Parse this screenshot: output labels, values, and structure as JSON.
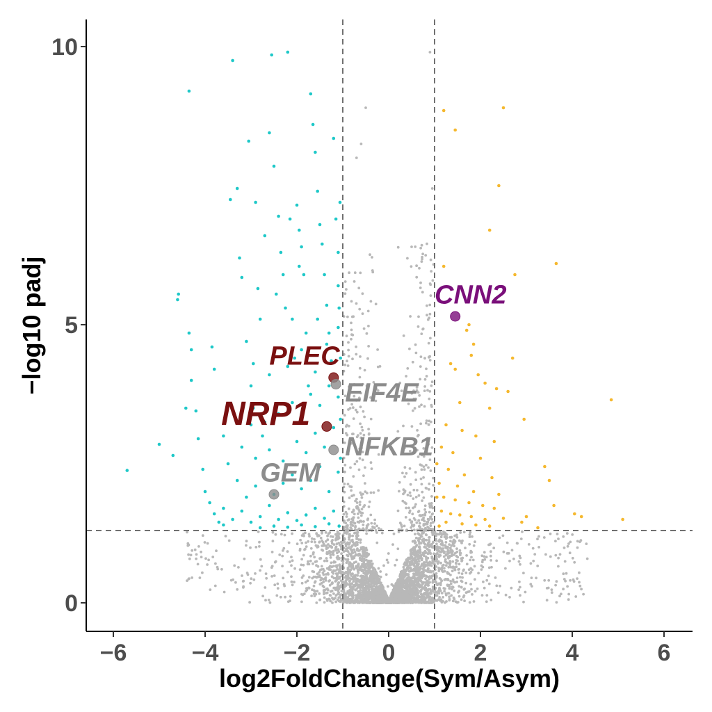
{
  "chart_data": {
    "type": "scatter",
    "title": "",
    "xlabel": "log2FoldChange(Sym/Asym)",
    "ylabel": "−log10 padj",
    "xlim": [
      -6.6,
      6.6
    ],
    "ylim": [
      -0.5,
      10.5
    ],
    "x_ticks": [
      -6,
      -4,
      -2,
      0,
      2,
      4,
      6
    ],
    "x_tick_labels": [
      "−6",
      "−4",
      "−2",
      "0",
      "2",
      "4",
      "6"
    ],
    "y_ticks": [
      0,
      5,
      10
    ],
    "y_tick_labels": [
      "0",
      "5",
      "10"
    ],
    "grid": false,
    "legend": "none",
    "thresholds": {
      "log2fc": [
        -1,
        1
      ],
      "neg_log10_padj": 1.3
    },
    "colors": {
      "down": "#1ec8c8",
      "up": "#f5b82e",
      "not_significant": "#b8b8b8",
      "highlight_dark_red": "#7a1010",
      "highlight_purple": "#7a0f7a",
      "highlight_gray": "#8c8c8c",
      "threshold_line": "#707070"
    },
    "series": [
      {
        "key": "down",
        "color": "#1ec8c8",
        "points": [
          [
            -5.7,
            2.38
          ],
          [
            -5.0,
            2.85
          ],
          [
            -4.7,
            2.65
          ],
          [
            -4.6,
            5.45
          ],
          [
            -4.58,
            5.55
          ],
          [
            -4.42,
            3.5
          ],
          [
            -4.35,
            9.2
          ],
          [
            -4.35,
            4.85
          ],
          [
            -4.3,
            4.55
          ],
          [
            -4.3,
            4.0
          ],
          [
            -4.2,
            3.45
          ],
          [
            -4.15,
            2.95
          ],
          [
            -4.05,
            2.4
          ],
          [
            -4.0,
            2.0
          ],
          [
            -3.9,
            1.8
          ],
          [
            -3.85,
            4.6
          ],
          [
            -3.8,
            4.2
          ],
          [
            -3.7,
            1.45
          ],
          [
            -3.6,
            1.4
          ],
          [
            -3.45,
            7.25
          ],
          [
            -3.4,
            9.75
          ],
          [
            -3.3,
            7.45
          ],
          [
            -3.2,
            5.85
          ],
          [
            -3.1,
            4.7
          ],
          [
            -3.05,
            8.3
          ],
          [
            -3.0,
            3.9
          ],
          [
            -2.95,
            3.5
          ],
          [
            -2.9,
            7.2
          ],
          [
            -2.85,
            5.65
          ],
          [
            -2.8,
            5.1
          ],
          [
            -2.75,
            3.0
          ],
          [
            -2.7,
            2.4
          ],
          [
            -2.6,
            8.45
          ],
          [
            -2.55,
            9.85
          ],
          [
            -2.5,
            7.85
          ],
          [
            -2.4,
            6.95
          ],
          [
            -2.35,
            6.3
          ],
          [
            -2.3,
            5.9
          ],
          [
            -2.25,
            5.3
          ],
          [
            -2.2,
            9.9
          ],
          [
            -2.15,
            6.9
          ],
          [
            -2.1,
            5.1
          ],
          [
            -2.05,
            4.4
          ],
          [
            -2.0,
            7.15
          ],
          [
            -1.95,
            6.7
          ],
          [
            -1.9,
            6.4
          ],
          [
            -1.85,
            5.9
          ],
          [
            -1.8,
            4.85
          ],
          [
            -1.75,
            3.9
          ],
          [
            -1.7,
            9.15
          ],
          [
            -1.65,
            8.6
          ],
          [
            -1.6,
            8.1
          ],
          [
            -1.55,
            7.4
          ],
          [
            -1.5,
            6.8
          ],
          [
            -1.45,
            6.45
          ],
          [
            -1.4,
            5.9
          ],
          [
            -1.35,
            5.35
          ],
          [
            -1.3,
            4.85
          ],
          [
            -1.25,
            4.35
          ],
          [
            -1.2,
            8.35
          ],
          [
            -1.15,
            6.9
          ],
          [
            -1.1,
            5.7
          ],
          [
            -1.05,
            4.4
          ],
          [
            -3.8,
            1.6
          ],
          [
            -3.6,
            1.7
          ],
          [
            -3.4,
            1.5
          ],
          [
            -3.2,
            1.65
          ],
          [
            -3.0,
            1.45
          ],
          [
            -2.8,
            1.55
          ],
          [
            -2.6,
            1.75
          ],
          [
            -2.4,
            1.5
          ],
          [
            -2.2,
            1.62
          ],
          [
            -2.0,
            1.48
          ],
          [
            -1.8,
            1.58
          ],
          [
            -1.6,
            1.7
          ],
          [
            -1.4,
            1.52
          ],
          [
            -1.2,
            1.65
          ],
          [
            -3.1,
            1.9
          ],
          [
            -2.9,
            2.1
          ],
          [
            -2.7,
            2.25
          ],
          [
            -2.5,
            1.95
          ],
          [
            -2.3,
            2.15
          ],
          [
            -2.1,
            2.3
          ],
          [
            -1.9,
            2.05
          ],
          [
            -1.7,
            2.2
          ],
          [
            -1.5,
            2.45
          ],
          [
            -1.3,
            2.0
          ],
          [
            -1.1,
            2.35
          ],
          [
            -2.9,
            2.6
          ],
          [
            -2.6,
            2.75
          ],
          [
            -2.3,
            2.55
          ],
          [
            -2.0,
            2.9
          ],
          [
            -1.8,
            2.7
          ],
          [
            -1.6,
            3.05
          ],
          [
            -1.4,
            2.8
          ],
          [
            -1.2,
            3.15
          ],
          [
            -2.7,
            3.25
          ],
          [
            -2.4,
            3.4
          ],
          [
            -2.1,
            3.6
          ],
          [
            -1.9,
            3.3
          ],
          [
            -1.7,
            3.75
          ],
          [
            -1.5,
            3.55
          ],
          [
            -1.3,
            3.9
          ],
          [
            -1.1,
            3.7
          ],
          [
            -2.6,
            4.1
          ],
          [
            -2.2,
            4.25
          ],
          [
            -1.9,
            4.55
          ],
          [
            -1.6,
            4.15
          ],
          [
            -1.35,
            4.65
          ],
          [
            -1.1,
            4.95
          ],
          [
            -2.8,
            1.35
          ],
          [
            -2.5,
            1.38
          ],
          [
            -2.2,
            1.36
          ],
          [
            -1.9,
            1.4
          ],
          [
            -1.6,
            1.37
          ],
          [
            -1.3,
            1.42
          ],
          [
            -1.08,
            1.38
          ],
          [
            -1.05,
            2.6
          ],
          [
            -1.05,
            3.3
          ],
          [
            -1.08,
            5.3
          ],
          [
            -1.1,
            6.3
          ],
          [
            -1.06,
            7.2
          ],
          [
            -3.6,
            3.0
          ],
          [
            -3.5,
            2.5
          ],
          [
            -3.3,
            2.2
          ],
          [
            -3.2,
            2.8
          ],
          [
            -3.0,
            3.2
          ],
          [
            -2.95,
            4.3
          ],
          [
            -3.25,
            6.2
          ],
          [
            -2.7,
            6.6
          ],
          [
            -2.45,
            5.55
          ],
          [
            -1.95,
            6.05
          ],
          [
            -1.55,
            5.1
          ]
        ]
      },
      {
        "key": "up",
        "color": "#f5b82e",
        "points": [
          [
            1.2,
            8.85
          ],
          [
            1.45,
            8.5
          ],
          [
            2.5,
            8.9
          ],
          [
            2.4,
            7.5
          ],
          [
            2.2,
            6.7
          ],
          [
            3.65,
            6.1
          ],
          [
            1.2,
            6.05
          ],
          [
            2.75,
            5.9
          ],
          [
            1.75,
            5.0
          ],
          [
            1.7,
            4.9
          ],
          [
            1.85,
            4.65
          ],
          [
            1.8,
            4.45
          ],
          [
            2.7,
            4.4
          ],
          [
            1.35,
            4.3
          ],
          [
            1.45,
            4.2
          ],
          [
            1.95,
            4.1
          ],
          [
            2.1,
            3.95
          ],
          [
            2.35,
            3.85
          ],
          [
            2.6,
            3.8
          ],
          [
            4.85,
            3.65
          ],
          [
            1.55,
            3.6
          ],
          [
            2.2,
            3.5
          ],
          [
            2.95,
            3.3
          ],
          [
            1.25,
            3.2
          ],
          [
            1.6,
            3.1
          ],
          [
            1.9,
            3.0
          ],
          [
            2.3,
            2.9
          ],
          [
            1.15,
            2.8
          ],
          [
            1.4,
            2.7
          ],
          [
            2.0,
            2.6
          ],
          [
            1.05,
            2.5
          ],
          [
            1.3,
            2.4
          ],
          [
            3.4,
            2.45
          ],
          [
            1.65,
            2.3
          ],
          [
            2.25,
            2.25
          ],
          [
            3.5,
            2.2
          ],
          [
            1.1,
            2.15
          ],
          [
            1.5,
            2.1
          ],
          [
            1.85,
            2.0
          ],
          [
            2.4,
            1.95
          ],
          [
            1.2,
            1.9
          ],
          [
            1.45,
            1.85
          ],
          [
            1.75,
            1.8
          ],
          [
            2.05,
            1.75
          ],
          [
            2.3,
            1.7
          ],
          [
            3.6,
            1.75
          ],
          [
            1.15,
            1.65
          ],
          [
            1.35,
            1.6
          ],
          [
            1.55,
            1.58
          ],
          [
            1.8,
            1.55
          ],
          [
            2.1,
            1.5
          ],
          [
            2.5,
            1.52
          ],
          [
            3.0,
            1.55
          ],
          [
            1.25,
            1.45
          ],
          [
            1.6,
            1.42
          ],
          [
            1.9,
            1.4
          ],
          [
            2.2,
            1.38
          ],
          [
            4.05,
            1.6
          ],
          [
            4.2,
            1.55
          ],
          [
            5.1,
            1.5
          ],
          [
            3.25,
            1.35
          ],
          [
            1.05,
            1.9
          ],
          [
            1.1,
            1.38
          ],
          [
            2.9,
            1.45
          ]
        ]
      },
      {
        "key": "highlight",
        "points": [
          {
            "gene": "CNN2",
            "x": 1.45,
            "y": 5.15,
            "color": "#7a0f7a",
            "label_size": "medium"
          },
          {
            "gene": "PLEC",
            "x": -1.2,
            "y": 4.05,
            "color": "#7a1010",
            "label_size": "medium"
          },
          {
            "gene": "EIF4E",
            "x": -1.15,
            "y": 3.93,
            "color": "#8c8c8c",
            "label_size": "medium"
          },
          {
            "gene": "NRP1",
            "x": -1.35,
            "y": 3.17,
            "color": "#7a1010",
            "label_size": "large"
          },
          {
            "gene": "NFKB1",
            "x": -1.2,
            "y": 2.75,
            "color": "#8c8c8c",
            "label_size": "medium"
          },
          {
            "gene": "GEM",
            "x": -2.5,
            "y": 1.95,
            "color": "#8c8c8c",
            "label_size": "medium"
          }
        ]
      }
    ],
    "labels": [
      {
        "text": "CNN2",
        "x": 1.0,
        "y": 5.38,
        "color": "#7a0f7a"
      },
      {
        "text": "PLEC",
        "x": -2.6,
        "y": 4.28,
        "color": "#7a1010"
      },
      {
        "text": "EIF4E",
        "x": -0.95,
        "y": 3.62,
        "color": "#8c8c8c"
      },
      {
        "text": "NRP1",
        "x": -3.65,
        "y": 3.2,
        "color": "#7a1010"
      },
      {
        "text": "NFKB1",
        "x": -0.95,
        "y": 2.65,
        "color": "#8c8c8c"
      },
      {
        "text": "GEM",
        "x": -2.8,
        "y": 2.18,
        "color": "#8c8c8c"
      }
    ],
    "background_points": "dense cloud of non-significant genes forming a V shape centred at x=0, spread roughly −4.5 to 4.5 in x and 0 to ~1.3 in y, with sparser gray points up to y≈8 near |x|≈1"
  }
}
